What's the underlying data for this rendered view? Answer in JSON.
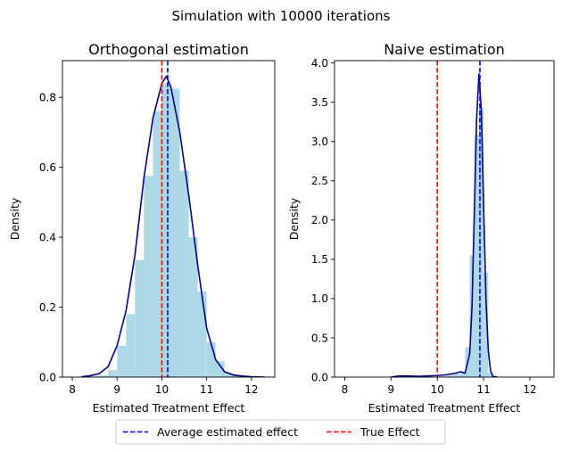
{
  "figure": {
    "suptitle": "Simulation with 10000 iterations"
  },
  "legend": {
    "entries": [
      {
        "label": "Average estimated effect",
        "color": "#0000ff",
        "style": "dashed"
      },
      {
        "label": "True Effect",
        "color": "#ff0000",
        "style": "dashed"
      }
    ],
    "placement": "bottom-center"
  },
  "colors": {
    "hist_fill": "#add8e6",
    "kde_line": "#00008b",
    "average_line": "#0000ff",
    "true_line": "#ff0000"
  },
  "chart_data": [
    {
      "type": "bar",
      "title": "Orthogonal estimation",
      "xlabel": "Estimated Treatment Effect",
      "ylabel": "Density",
      "xlim": [
        7.78,
        12.52
      ],
      "ylim": [
        0,
        0.905
      ],
      "xticks": [
        8,
        9,
        10,
        11,
        12
      ],
      "yticks": [
        0.0,
        0.2,
        0.4,
        0.6,
        0.8
      ],
      "ytick_labels": [
        "0.0",
        "0.2",
        "0.4",
        "0.6",
        "0.8"
      ],
      "grid": false,
      "histogram": {
        "bin_width": 0.2,
        "bin_left_edges": [
          8.2,
          8.4,
          8.6,
          8.8,
          9.0,
          9.2,
          9.4,
          9.6,
          9.8,
          10.0,
          10.2,
          10.4,
          10.6,
          10.8,
          11.0,
          11.2,
          11.4,
          11.6,
          11.8,
          12.0
        ],
        "values": [
          0.0,
          0.002,
          0.005,
          0.02,
          0.09,
          0.18,
          0.335,
          0.575,
          0.76,
          0.84,
          0.825,
          0.59,
          0.4,
          0.245,
          0.1,
          0.045,
          0.01,
          0.004,
          0.002,
          0.0
        ]
      },
      "kde": {
        "x": [
          8.2,
          8.4,
          8.6,
          8.8,
          9.0,
          9.2,
          9.4,
          9.6,
          9.8,
          10.0,
          10.1,
          10.2,
          10.4,
          10.6,
          10.8,
          11.0,
          11.2,
          11.4,
          11.6,
          11.8,
          12.0,
          12.3
        ],
        "y": [
          0.001,
          0.004,
          0.01,
          0.03,
          0.09,
          0.19,
          0.35,
          0.57,
          0.74,
          0.84,
          0.86,
          0.83,
          0.7,
          0.52,
          0.32,
          0.14,
          0.05,
          0.015,
          0.006,
          0.003,
          0.001,
          0.0
        ]
      },
      "average_estimated_effect": 10.13,
      "true_effect": 10.0
    },
    {
      "type": "bar",
      "title": "Naive estimation",
      "xlabel": "Estimated Treatment Effect",
      "ylabel": "Density",
      "xlim": [
        7.78,
        12.52
      ],
      "ylim": [
        0,
        4.03
      ],
      "xticks": [
        8,
        9,
        10,
        11,
        12
      ],
      "yticks": [
        0.0,
        0.5,
        1.0,
        1.5,
        2.0,
        2.5,
        3.0,
        3.5,
        4.0
      ],
      "ytick_labels": [
        "0.0",
        "0.5",
        "1.0",
        "1.5",
        "2.0",
        "2.5",
        "3.0",
        "3.5",
        "4.0"
      ],
      "grid": false,
      "histogram": {
        "bin_width": 0.1,
        "bin_left_edges": [
          9.6,
          9.7,
          9.8,
          9.9,
          10.0,
          10.1,
          10.2,
          10.3,
          10.4,
          10.5,
          10.6,
          10.7,
          10.8,
          10.9,
          11.0,
          11.1,
          11.2
        ],
        "values": [
          0.0,
          0.0,
          0.0,
          0.0,
          0.01,
          0.01,
          0.02,
          0.03,
          0.04,
          0.07,
          0.38,
          1.55,
          3.08,
          3.42,
          1.33,
          0.05,
          0.0
        ]
      },
      "kde": {
        "x": [
          9.0,
          9.1,
          9.2,
          9.4,
          9.6,
          9.8,
          10.0,
          10.2,
          10.4,
          10.5,
          10.6,
          10.7,
          10.75,
          10.8,
          10.85,
          10.9,
          10.95,
          11.0,
          11.05,
          11.1,
          11.15,
          11.2,
          11.3
        ],
        "y": [
          0.0,
          0.01,
          0.015,
          0.015,
          0.01,
          0.015,
          0.02,
          0.03,
          0.05,
          0.07,
          0.05,
          0.3,
          0.9,
          2.1,
          3.3,
          3.86,
          3.4,
          2.2,
          1.0,
          0.35,
          0.08,
          0.01,
          0.0
        ]
      },
      "average_estimated_effect": 10.92,
      "true_effect": 10.0
    }
  ]
}
